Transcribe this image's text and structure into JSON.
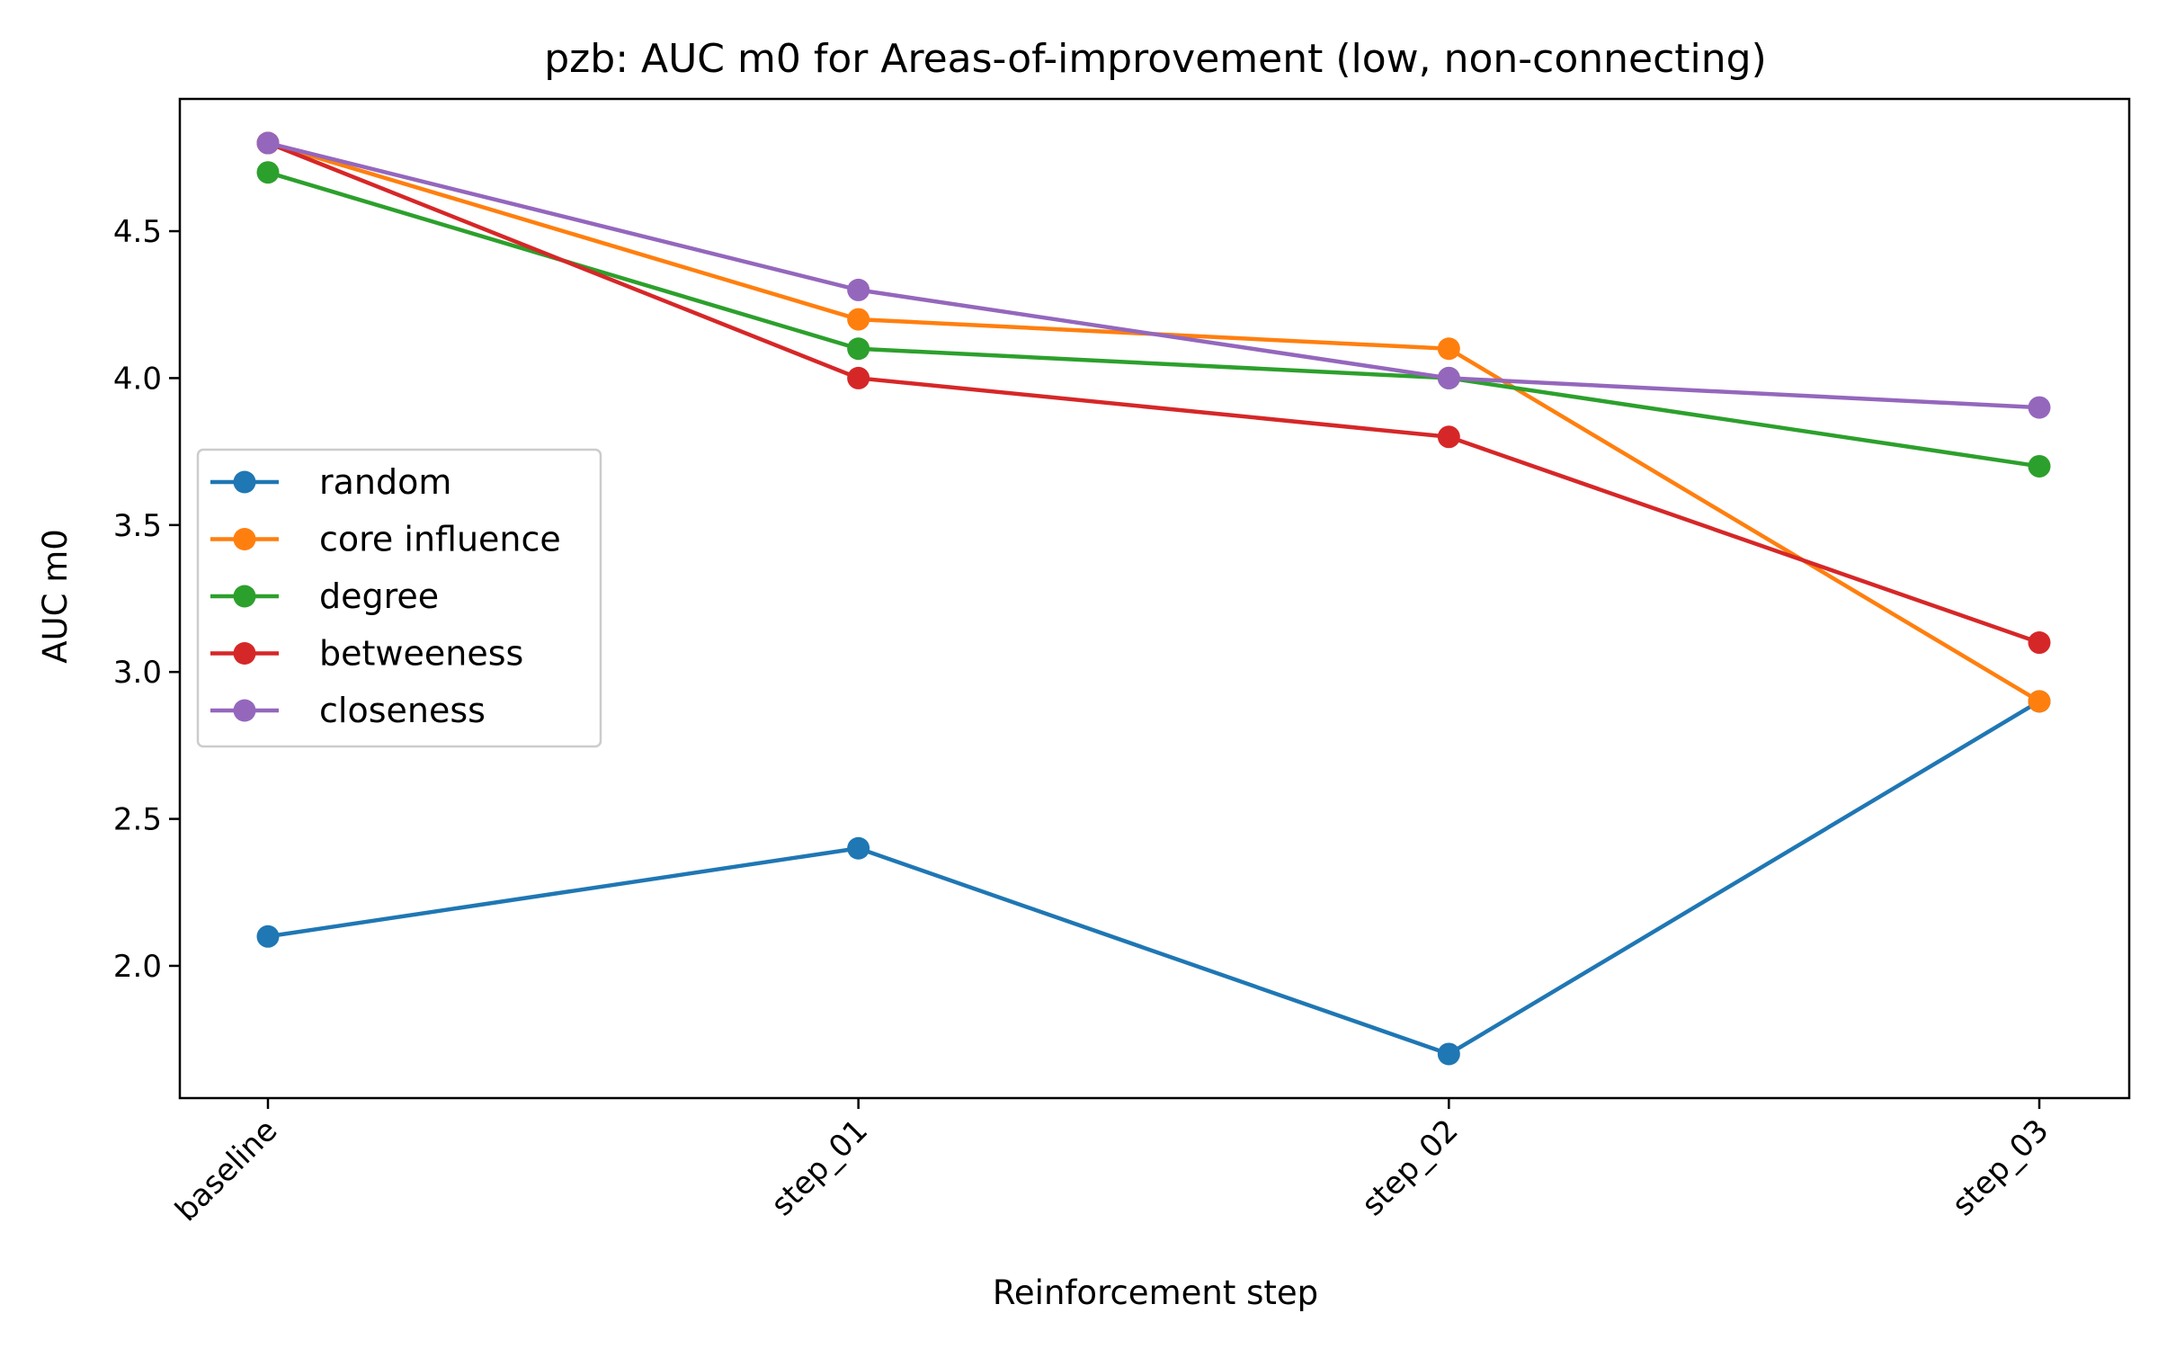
{
  "chart_data": {
    "type": "line",
    "title": "pzb: AUC m0 for Areas-of-improvement (low, non-connecting)",
    "xlabel": "Reinforcement step",
    "ylabel": "AUC m0",
    "categories": [
      "baseline",
      "step_01",
      "step_02",
      "step_03"
    ],
    "ylim": [
      1.55,
      4.95
    ],
    "yticks": [
      2.0,
      2.5,
      3.0,
      3.5,
      4.0,
      4.5
    ],
    "ytick_labels": [
      "2.0",
      "2.5",
      "3.0",
      "3.5",
      "4.0",
      "4.5"
    ],
    "grid": false,
    "legend_position": "center-left",
    "marker": "circle",
    "series": [
      {
        "name": "random",
        "color": "#1f77b4",
        "values": [
          2.1,
          2.4,
          1.7,
          2.9
        ]
      },
      {
        "name": "core influence",
        "color": "#ff7f0e",
        "values": [
          4.8,
          4.2,
          4.1,
          2.9
        ]
      },
      {
        "name": "degree",
        "color": "#2ca02c",
        "values": [
          4.7,
          4.1,
          4.0,
          3.7
        ]
      },
      {
        "name": "betweeness",
        "color": "#d62728",
        "values": [
          4.8,
          4.0,
          3.8,
          3.1
        ]
      },
      {
        "name": "closeness",
        "color": "#9467bd",
        "values": [
          4.8,
          4.3,
          4.0,
          3.9
        ]
      }
    ]
  }
}
